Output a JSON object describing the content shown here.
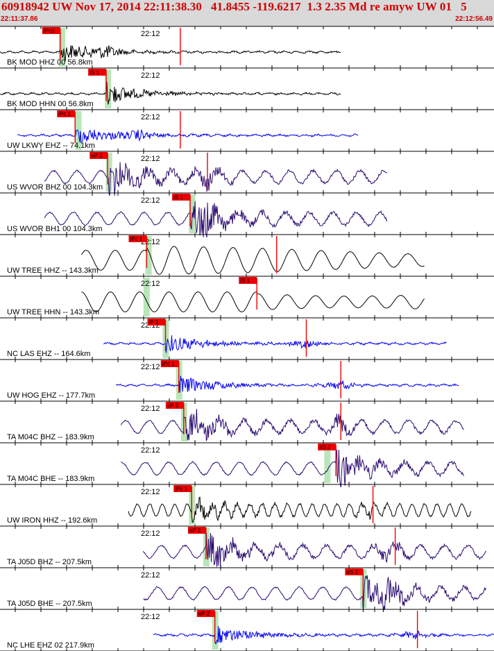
{
  "header": {
    "title": "60918942 UW Nov 17, 2014 22:11:38.30   41.8455 -119.6217  1.3 2.35 Md re amyw UW 01   5",
    "start_time": "22:11:37.86",
    "end_time": "22:12:56.49"
  },
  "colors": {
    "header_bg": "#d9d9d9",
    "header_text": "#d00000",
    "pick": "#ee0000",
    "window": "#b9e6b9",
    "trace_black": "#000000",
    "trace_blue": "#0000ee",
    "trace_purple": "#2a0a6e"
  },
  "chart_data": {
    "type": "seismogram",
    "title": "60918942 UW Nov 17, 2014 22:11:38.30   41.8455 -119.6217  1.3 2.35 Md re amyw UW 01   5",
    "x_range": [
      "22:11:37.86",
      "22:12:56.49"
    ],
    "time_tick_label": "22:12",
    "traces": [
      {
        "label": "BK MOD HHZ 00 56.8km",
        "pick": "iPc0",
        "color": "black",
        "start": 0.0,
        "end": 0.69,
        "pick_t": 0.122,
        "peak_t": 0.215,
        "window_t": 0.125,
        "end_pick_t": 0.365,
        "kind": "local"
      },
      {
        "label": "BK MOD HHN 00 56.8km",
        "pick": "iS 1",
        "color": "black",
        "start": 0.0,
        "end": 0.69,
        "pick_t": 0.215,
        "peak_t": 0.215,
        "window_t": 0.218,
        "end_pick_t": null,
        "kind": "local"
      },
      {
        "label": "UW LKWY EHZ -- 74.1km",
        "pick": "iPc 1",
        "color": "blue",
        "start": 0.035,
        "end": 0.725,
        "pick_t": 0.152,
        "peak_t": 0.28,
        "window_t": 0.158,
        "end_pick_t": 0.365,
        "kind": "local"
      },
      {
        "label": "US WVOR BHZ 00 104.3km",
        "pick": "eP 2",
        "color": "purple",
        "start": 0.09,
        "end": 0.785,
        "pick_t": 0.218,
        "peak_t": 0.42,
        "window_t": 0.22,
        "end_pick_t": 0.42,
        "kind": "bb"
      },
      {
        "label": "US WVOR BH1 00 104.3km",
        "pick": "iS 1",
        "color": "purple",
        "start": 0.09,
        "end": 0.785,
        "pick_t": 0.385,
        "peak_t": 0.42,
        "window_t": 0.388,
        "end_pick_t": null,
        "kind": "bb"
      },
      {
        "label": "UW TREE HHZ -- 143.3km",
        "pick": "iPc 1",
        "color": "black",
        "start": 0.165,
        "end": 0.86,
        "pick_t": 0.297,
        "peak_t": 0.56,
        "window_t": 0.3,
        "end_pick_t": 0.56,
        "kind": "long"
      },
      {
        "label": "UW TREE HHN -- 143.3km",
        "pick": "iS 1",
        "color": "black",
        "start": 0.165,
        "end": 0.86,
        "pick_t": 0.52,
        "peak_t": 0.56,
        "window_t": 0.296,
        "end_pick_t": null,
        "kind": "long"
      },
      {
        "label": "NC LAS EHZ -- 164.6km",
        "pick": "iP 1",
        "color": "blue",
        "start": 0.21,
        "end": 0.905,
        "pick_t": 0.335,
        "peak_t": 0.62,
        "window_t": 0.335,
        "end_pick_t": 0.62,
        "kind": "local"
      },
      {
        "label": "UW HOG EHZ -- 177.7km",
        "pick": "iPc 1",
        "color": "blue",
        "start": 0.235,
        "end": 0.93,
        "pick_t": 0.362,
        "peak_t": 0.69,
        "window_t": 0.362,
        "end_pick_t": 0.69,
        "kind": "local"
      },
      {
        "label": "TA M04C BHZ -- 183.9km",
        "pick": "eP 2",
        "color": "purple",
        "start": 0.245,
        "end": 0.94,
        "pick_t": 0.372,
        "peak_t": 0.69,
        "window_t": 0.372,
        "end_pick_t": 0.69,
        "kind": "bb"
      },
      {
        "label": "TA M04C BHE -- 183.9km",
        "pick": "eS 2",
        "color": "purple",
        "start": 0.245,
        "end": 0.94,
        "pick_t": 0.68,
        "peak_t": 0.69,
        "window_t": 0.662,
        "end_pick_t": null,
        "kind": "bb"
      },
      {
        "label": "UW IRON HHZ -- 192.6km",
        "pick": "iPc 1",
        "color": "black",
        "start": 0.26,
        "end": 0.955,
        "pick_t": 0.388,
        "peak_t": 0.75,
        "window_t": 0.388,
        "end_pick_t": 0.755,
        "kind": "mixed"
      },
      {
        "label": "TA J05D BHZ -- 207.5km",
        "pick": "eP 2",
        "color": "purple",
        "start": 0.29,
        "end": 0.985,
        "pick_t": 0.417,
        "peak_t": 0.79,
        "window_t": 0.417,
        "end_pick_t": 0.8,
        "kind": "bb"
      },
      {
        "label": "TA J05D BHE -- 207.5km",
        "pick": "eS 2",
        "color": "purple",
        "start": 0.29,
        "end": 0.985,
        "pick_t": 0.735,
        "peak_t": 0.79,
        "window_t": 0.735,
        "end_pick_t": null,
        "kind": "bb"
      },
      {
        "label": "NC LHE EHZ 02 217.9km",
        "pick": "eP 2",
        "color": "blue",
        "start": 0.31,
        "end": 1.0,
        "pick_t": 0.435,
        "peak_t": 0.84,
        "window_t": 0.435,
        "end_pick_t": 0.845,
        "kind": "local"
      }
    ]
  }
}
